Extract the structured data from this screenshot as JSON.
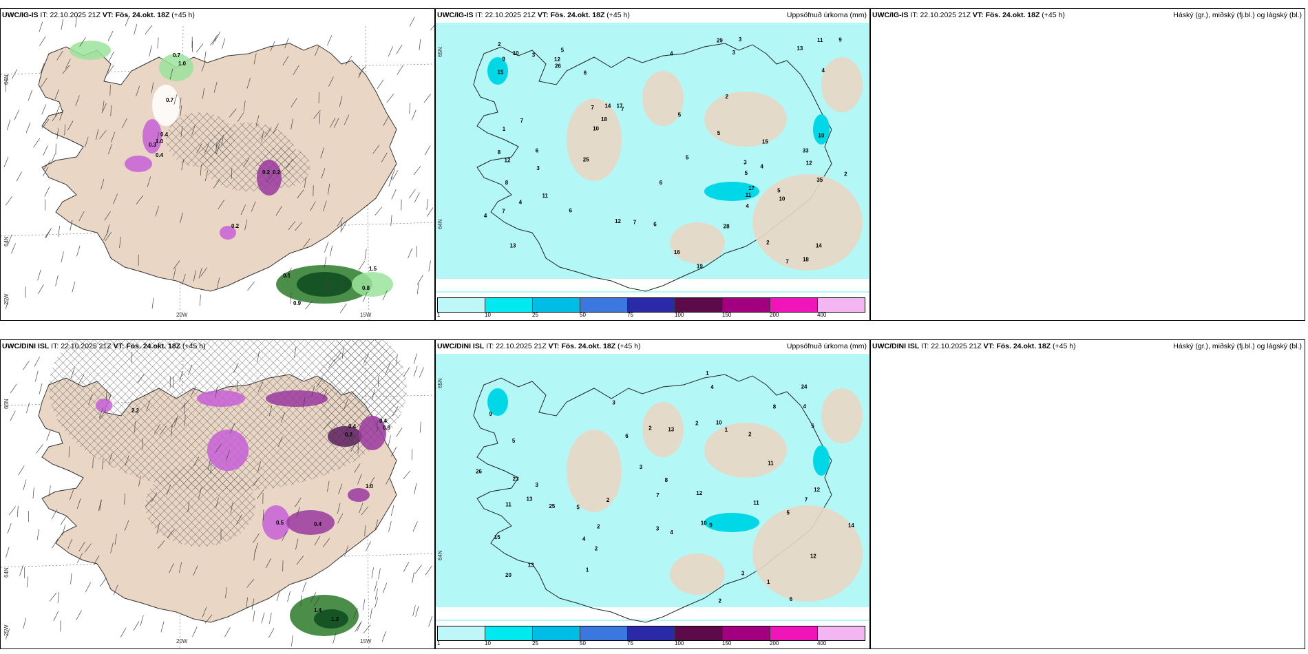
{
  "panels": [
    {
      "model": "UWC/IG-IS",
      "it_label": "IT:",
      "it": "22.10.2025 21Z",
      "vt_label": "VT:",
      "vt": "Fös. 24.okt. 18Z",
      "lead": "(+45 h)",
      "right": "",
      "coords": {
        "lat1": "66N",
        "lat2": "64N",
        "lat3": "25W",
        "lon1": "20W",
        "lon2": "15W"
      },
      "values": [
        "0.7",
        "1.0",
        "0.7",
        "0.4",
        "1.0",
        "0.3",
        "0.4",
        "0.2",
        "0.2",
        "1.5",
        "0.8",
        "0.9",
        "0.2",
        "0.1"
      ]
    },
    {
      "model": "UWC/IG-IS",
      "it_label": "IT:",
      "it": "22.10.2025 21Z",
      "vt_label": "VT:",
      "vt": "Fös. 24.okt. 18Z",
      "lead": "(+45 h)",
      "right": "Uppsöfnuð úrkoma (mm)",
      "coords": {
        "lat1": "65N",
        "lat2": "64N"
      },
      "values": [
        "5",
        "12",
        "13",
        "5",
        "7",
        "2",
        "7",
        "3",
        "7",
        "19",
        "15",
        "8",
        "9",
        "14",
        "12",
        "10",
        "6",
        "5",
        "17",
        "11",
        "9",
        "13",
        "10",
        "35",
        "29",
        "12",
        "17",
        "12",
        "26",
        "15",
        "16",
        "28",
        "18",
        "25",
        "33",
        "10",
        "11",
        "6",
        "6",
        "4",
        "4",
        "3",
        "18",
        "7",
        "5",
        "6",
        "4",
        "10",
        "5",
        "1",
        "2",
        "14",
        "11",
        "3",
        "4",
        "7",
        "2",
        "2",
        "3",
        "3",
        "4",
        "6",
        "5",
        "8",
        "4",
        "7"
      ]
    },
    {
      "model": "UWC/IG-IS",
      "it_label": "IT:",
      "it": "22.10.2025 21Z",
      "vt_label": "VT:",
      "vt": "Fös. 24.okt. 18Z",
      "lead": "(+45 h)",
      "right": "Háský (gr.), miðský (fj.bl.) og lágský (bl.)",
      "coords": {},
      "values": []
    },
    {
      "model": "UWC/DINI ISL",
      "it_label": "IT:",
      "it": "22.10.2025 21Z",
      "vt_label": "VT:",
      "vt": "Fös. 24.okt. 18Z",
      "lead": "(+45 h)",
      "right": "",
      "coords": {
        "lat1": "66N",
        "lat2": "64N",
        "lat3": "25W",
        "lon1": "20W",
        "lon2": "15W"
      },
      "values": [
        "2.2",
        "0.4",
        "0.2",
        "0.4",
        "0.9",
        "0.4",
        "0.5",
        "1.0",
        "1.4",
        "1.3"
      ]
    },
    {
      "model": "UWC/DINI ISL",
      "it_label": "IT:",
      "it": "22.10.2025 21Z",
      "vt_label": "VT:",
      "vt": "Fös. 24.okt. 18Z",
      "lead": "(+45 h)",
      "right": "Uppsöfnuð úrkoma (mm)",
      "coords": {
        "lat1": "65N",
        "lat2": "64N"
      },
      "values": [
        "6",
        "13",
        "10",
        "9",
        "12",
        "5",
        "13",
        "5",
        "2",
        "2",
        "1",
        "1",
        "2",
        "3",
        "12",
        "15",
        "11",
        "8",
        "26",
        "20",
        "24",
        "13",
        "11",
        "14",
        "12",
        "23",
        "25",
        "7",
        "3",
        "4",
        "9",
        "11",
        "4",
        "10",
        "6",
        "5",
        "7",
        "3",
        "8",
        "2",
        "2",
        "4",
        "1",
        "1",
        "2",
        "3",
        "5",
        "4",
        "2",
        "3"
      ]
    },
    {
      "model": "UWC/DINI ISL",
      "it_label": "IT:",
      "it": "22.10.2025 21Z",
      "vt_label": "VT:",
      "vt": "Fös. 24.okt. 18Z",
      "lead": "(+45 h)",
      "right": "Háský (gr.), miðský (fj.bl.) og lágský (bl.)",
      "coords": {},
      "values": []
    }
  ],
  "colorbar": {
    "labels": [
      "1",
      "10",
      "25",
      "50",
      "75",
      "100",
      "150",
      "200",
      "400"
    ],
    "colors": [
      "#bff6f8",
      "#00e8f0",
      "#00bde6",
      "#3a78e0",
      "#2a2aa8",
      "#5c0a4a",
      "#a30080",
      "#f015b8",
      "#f4b6f2"
    ]
  },
  "colors": {
    "land": "#e9d6c4",
    "sea_precip": "#b3f8f6",
    "high_cloud": "#8a1f3a",
    "mid_cloud": "#5050cc",
    "low_cloud": "#1f7a5a"
  }
}
